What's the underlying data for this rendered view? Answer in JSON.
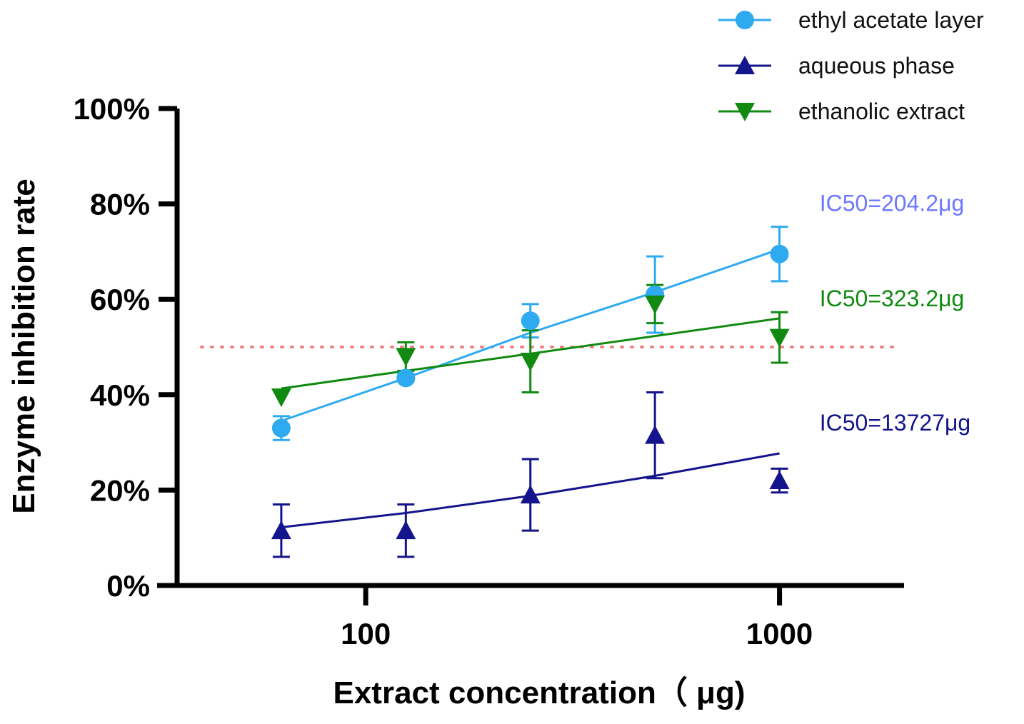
{
  "chart_data": {
    "type": "scatter",
    "x_scale": "log",
    "xlabel": "Extract concentration（ μg)",
    "ylabel": "Enzyme inhibition rate",
    "xlim": [
      35,
      2000
    ],
    "ylim": [
      0,
      100
    ],
    "x_ticks": [
      {
        "value": 100,
        "label": "100"
      },
      {
        "value": 1000,
        "label": "1000"
      }
    ],
    "y_ticks": [
      {
        "value": 0,
        "label": "0%"
      },
      {
        "value": 20,
        "label": "20%"
      },
      {
        "value": 40,
        "label": "40%"
      },
      {
        "value": 60,
        "label": "60%"
      },
      {
        "value": 80,
        "label": "80%"
      },
      {
        "value": 100,
        "label": "100%"
      }
    ],
    "reference_line": {
      "y": 50,
      "color": "#f08080",
      "style": "dotted"
    },
    "series": [
      {
        "name": "ethyl acetate layer",
        "marker": "circle",
        "color": "#2eaaf0",
        "x": [
          62.5,
          125,
          250,
          500,
          1000
        ],
        "y": [
          33,
          43.5,
          55.5,
          61,
          69.5
        ],
        "err": [
          2.5,
          0.8,
          3.5,
          8,
          5.7
        ],
        "fit": [
          [
            62.5,
            34.5
          ],
          [
            125,
            43.5
          ],
          [
            250,
            53
          ],
          [
            500,
            61.5
          ],
          [
            1000,
            70.5
          ]
        ],
        "ic50_label": "IC50=204.2μg",
        "ic50_color": "#6b78ff",
        "ic50_at": [
          1250,
          78.5
        ]
      },
      {
        "name": "aqueous phase",
        "marker": "triangle-up",
        "color": "#14148c",
        "x": [
          62.5,
          125,
          250,
          500,
          1000
        ],
        "y": [
          11.5,
          11.5,
          19,
          31.5,
          22
        ],
        "err": [
          5.5,
          5.5,
          7.5,
          9,
          2.5
        ],
        "fit": [
          [
            62.5,
            12.2
          ],
          [
            125,
            15.2
          ],
          [
            250,
            18.8
          ],
          [
            500,
            23
          ],
          [
            1000,
            27.7
          ]
        ],
        "ic50_label": "IC50=13727μg",
        "ic50_color": "#14148c",
        "ic50_at": [
          1250,
          32.5
        ]
      },
      {
        "name": "ethanolic extract",
        "marker": "triangle-down",
        "color": "#118a11",
        "x": [
          62.5,
          125,
          250,
          500,
          1000
        ],
        "y": [
          39.5,
          48,
          47,
          59,
          52
        ],
        "err": [
          0,
          3,
          6.5,
          4,
          5.3
        ],
        "fit": [
          [
            62.5,
            41.3
          ],
          [
            125,
            45
          ],
          [
            250,
            48.6
          ],
          [
            500,
            52.3
          ],
          [
            1000,
            56
          ]
        ],
        "ic50_label": "IC50=323.2μg",
        "ic50_color": "#118a11",
        "ic50_at": [
          1250,
          58.5
        ]
      }
    ],
    "legend_position": "top-right"
  }
}
